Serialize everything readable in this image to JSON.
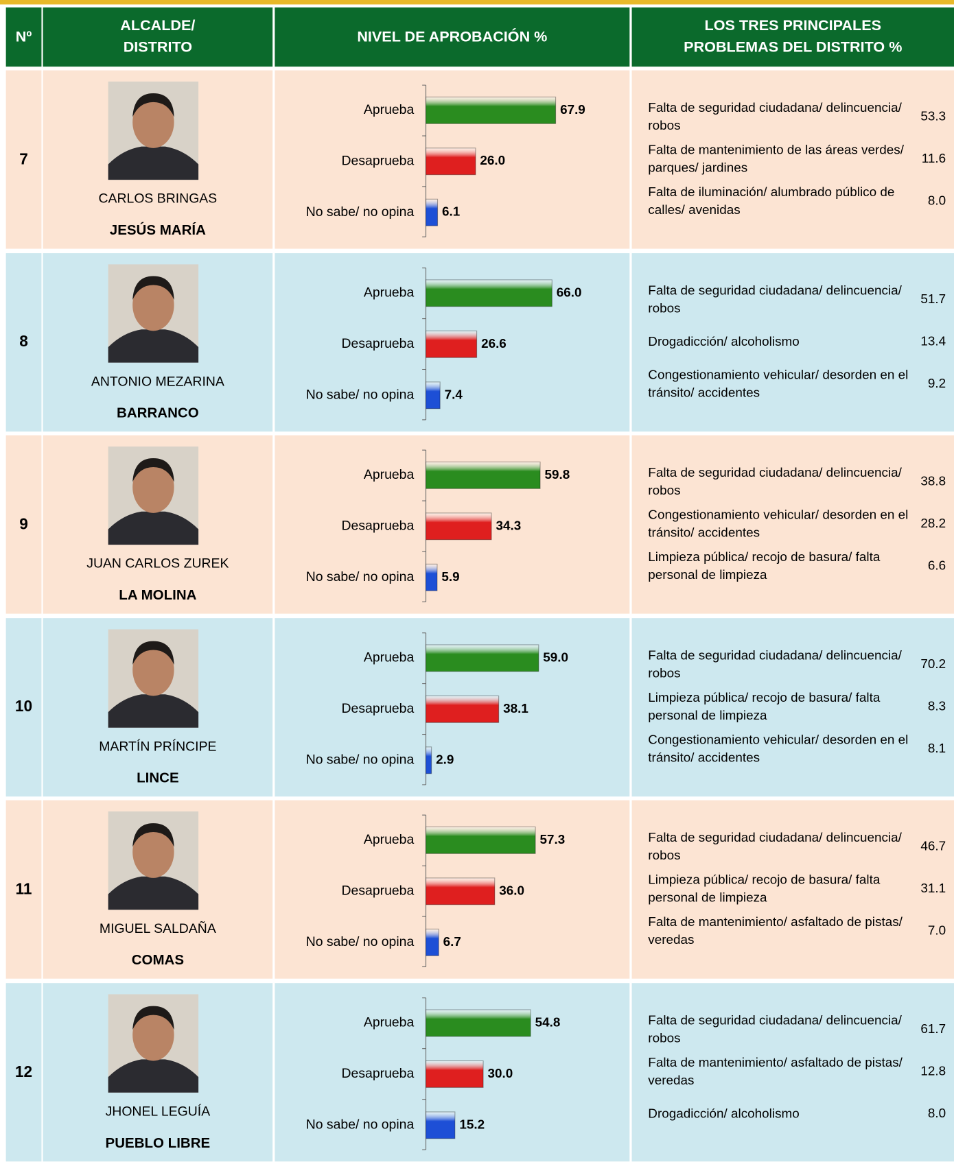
{
  "header": {
    "no": "Nº",
    "mayor": [
      "ALCALDE/",
      "DISTRITO"
    ],
    "approval": "NIVEL DE APROBACIÓN  %",
    "problems": [
      "LOS TRES PRINCIPALES",
      "PROBLEMAS DEL DISTRITO  %"
    ]
  },
  "bar_colors": [
    "#2a8c1f",
    "#df1f1f",
    "#1d4fd6"
  ],
  "xlim": [
    0,
    100
  ],
  "rows": [
    {
      "no": "7",
      "mayor": "CARLOS BRINGAS",
      "district": "JESÚS MARÍA",
      "approval": {
        "categories": [
          "Aprueba",
          "Desaprueba",
          "No sabe/ no opina"
        ],
        "values": [
          67.9,
          26.0,
          6.1
        ],
        "value_labels": [
          "67.9",
          "26.0",
          "6.1"
        ]
      },
      "problems": [
        {
          "text": "Falta de seguridad ciudadana/ delincuencia/ robos",
          "value": "53.3"
        },
        {
          "text": "Falta de mantenimiento de las áreas verdes/ parques/ jardines",
          "value": "11.6"
        },
        {
          "text": "Falta de iluminación/ alumbrado público de calles/ avenidas",
          "value": "8.0"
        }
      ]
    },
    {
      "no": "8",
      "mayor": "ANTONIO MEZARINA",
      "district": "BARRANCO",
      "approval": {
        "categories": [
          "Aprueba",
          "Desaprueba",
          "No sabe/ no opina"
        ],
        "values": [
          66.0,
          26.6,
          7.4
        ],
        "value_labels": [
          "66.0",
          "26.6",
          "7.4"
        ]
      },
      "problems": [
        {
          "text": "Falta de seguridad ciudadana/ delincuencia/ robos",
          "value": "51.7"
        },
        {
          "text": "Drogadicción/ alcoholismo",
          "value": "13.4"
        },
        {
          "text": "Congestionamiento vehicular/ desorden en el tránsito/ accidentes",
          "value": "9.2"
        }
      ]
    },
    {
      "no": "9",
      "mayor": "JUAN CARLOS ZUREK",
      "district": "LA MOLINA",
      "approval": {
        "categories": [
          "Aprueba",
          "Desaprueba",
          "No sabe/ no opina"
        ],
        "values": [
          59.8,
          34.3,
          5.9
        ],
        "value_labels": [
          "59.8",
          "34.3",
          "5.9"
        ]
      },
      "problems": [
        {
          "text": "Falta de seguridad ciudadana/ delincuencia/ robos",
          "value": "38.8"
        },
        {
          "text": "Congestionamiento vehicular/ desorden en el tránsito/ accidentes",
          "value": "28.2"
        },
        {
          "text": "Limpieza pública/ recojo de basura/ falta personal de limpieza",
          "value": "6.6"
        }
      ]
    },
    {
      "no": "10",
      "mayor": "MARTÍN PRÍNCIPE",
      "district": "LINCE",
      "approval": {
        "categories": [
          "Aprueba",
          "Desaprueba",
          "No sabe/ no opina"
        ],
        "values": [
          59.0,
          38.1,
          2.9
        ],
        "value_labels": [
          "59.0",
          "38.1",
          "2.9"
        ]
      },
      "problems": [
        {
          "text": "Falta de seguridad ciudadana/ delincuencia/ robos",
          "value": "70.2"
        },
        {
          "text": "Limpieza pública/ recojo de basura/ falta personal de limpieza",
          "value": "8.3"
        },
        {
          "text": "Congestionamiento vehicular/ desorden en el tránsito/ accidentes",
          "value": "8.1"
        }
      ]
    },
    {
      "no": "11",
      "mayor": "MIGUEL SALDAÑA",
      "district": "COMAS",
      "approval": {
        "categories": [
          "Aprueba",
          "Desaprueba",
          "No sabe/ no opina"
        ],
        "values": [
          57.3,
          36.0,
          6.7
        ],
        "value_labels": [
          "57.3",
          "36.0",
          "6.7"
        ]
      },
      "problems": [
        {
          "text": "Falta de seguridad ciudadana/ delincuencia/ robos",
          "value": "46.7"
        },
        {
          "text": "Limpieza pública/ recojo de basura/ falta personal de limpieza",
          "value": "31.1"
        },
        {
          "text": "Falta de mantenimiento/ asfaltado de pistas/ veredas",
          "value": "7.0"
        }
      ]
    },
    {
      "no": "12",
      "mayor": "JHONEL LEGUÍA",
      "district": "PUEBLO LIBRE",
      "approval": {
        "categories": [
          "Aprueba",
          "Desaprueba",
          "No sabe/ no opina"
        ],
        "values": [
          54.8,
          30.0,
          15.2
        ],
        "value_labels": [
          "54.8",
          "30.0",
          "15.2"
        ]
      },
      "problems": [
        {
          "text": "Falta de seguridad ciudadana/ delincuencia/ robos",
          "value": "61.7"
        },
        {
          "text": "Falta de mantenimiento/ asfaltado de pistas/ veredas",
          "value": "12.8"
        },
        {
          "text": "Drogadicción/ alcoholismo",
          "value": "8.0"
        }
      ]
    }
  ]
}
